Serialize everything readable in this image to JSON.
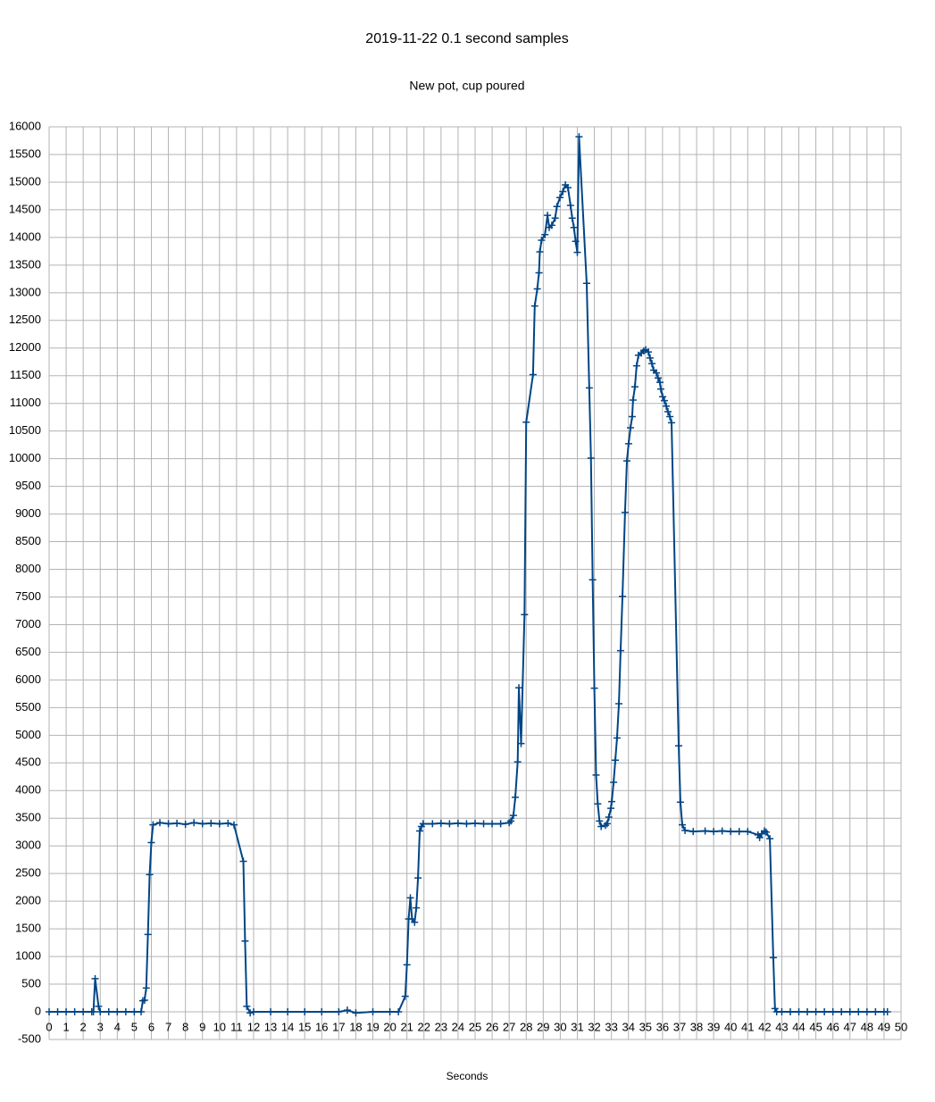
{
  "chart_data": {
    "type": "line",
    "title": "2019-11-22 0.1 second samples",
    "subtitle": "New pot, cup poured",
    "x_label": "Seconds",
    "color": "#004586",
    "grid": true,
    "x": [
      0,
      0.5,
      1,
      1.5,
      2,
      2.5,
      2.6,
      2.7,
      2.9,
      3.0,
      3.5,
      4,
      4.5,
      5,
      5.4,
      5.5,
      5.6,
      5.7,
      5.8,
      5.9,
      6.0,
      6.1,
      6.5,
      7,
      7.5,
      8,
      8.5,
      9,
      9.5,
      10,
      10.5,
      10.85,
      11.4,
      11.5,
      11.6,
      11.8,
      12,
      13,
      14,
      15,
      16,
      17,
      17.5,
      18,
      19,
      20,
      20.5,
      20.9,
      21.0,
      21.1,
      21.2,
      21.3,
      21.45,
      21.55,
      21.65,
      21.75,
      21.85,
      21.95,
      22.5,
      23,
      23.5,
      24,
      24.5,
      25,
      25.5,
      26,
      26.5,
      27.0,
      27.1,
      27.25,
      27.36,
      27.5,
      27.57,
      27.7,
      27.9,
      28.0,
      28.4,
      28.5,
      28.65,
      28.75,
      28.8,
      28.9,
      29.1,
      29.25,
      29.35,
      29.5,
      29.7,
      29.8,
      29.98,
      30.15,
      30.3,
      30.45,
      30.6,
      30.7,
      30.8,
      30.9,
      31.0,
      31.1,
      31.55,
      31.7,
      31.8,
      31.9,
      32.0,
      32.1,
      32.2,
      32.3,
      32.4,
      32.65,
      32.75,
      32.85,
      32.97,
      33.02,
      33.13,
      33.23,
      33.33,
      33.44,
      33.54,
      33.65,
      33.8,
      33.91,
      34.01,
      34.12,
      34.22,
      34.27,
      34.38,
      34.48,
      34.59,
      34.75,
      34.9,
      35.01,
      35.17,
      35.27,
      35.38,
      35.48,
      35.64,
      35.74,
      35.85,
      35.9,
      36.01,
      36.11,
      36.22,
      36.32,
      36.43,
      36.53,
      36.95,
      37.05,
      37.16,
      37.32,
      37.8,
      38.5,
      39,
      39.5,
      40,
      40.5,
      41,
      41.6,
      41.7,
      41.82,
      41.98,
      42.08,
      42.3,
      42.5,
      42.6,
      42.7,
      43,
      43.5,
      44,
      44.5,
      45,
      45.5,
      46,
      46.5,
      47,
      47.5,
      48,
      48.5,
      49,
      49.2
    ],
    "values": [
      0,
      0,
      0,
      0,
      0,
      0,
      0,
      600,
      100,
      0,
      0,
      0,
      0,
      0,
      0,
      200,
      210,
      430,
      1400,
      2480,
      3060,
      3380,
      3420,
      3400,
      3410,
      3390,
      3420,
      3400,
      3410,
      3400,
      3410,
      3380,
      2720,
      1280,
      100,
      -20,
      0,
      0,
      0,
      0,
      0,
      0,
      30,
      -20,
      0,
      0,
      0,
      280,
      850,
      1680,
      2060,
      1680,
      1620,
      1880,
      2420,
      3270,
      3350,
      3400,
      3400,
      3410,
      3400,
      3410,
      3400,
      3410,
      3400,
      3400,
      3400,
      3420,
      3450,
      3550,
      3880,
      4520,
      5860,
      4850,
      7180,
      10660,
      11520,
      12760,
      13070,
      13360,
      13740,
      13950,
      14050,
      14400,
      14180,
      14220,
      14350,
      14560,
      14720,
      14830,
      14950,
      14900,
      14580,
      14350,
      14180,
      13930,
      13730,
      15820,
      13170,
      11280,
      10010,
      7810,
      5850,
      4280,
      3760,
      3450,
      3350,
      3370,
      3400,
      3520,
      3680,
      3800,
      4150,
      4550,
      4950,
      5570,
      6530,
      7510,
      9030,
      9960,
      10270,
      10560,
      10760,
      11060,
      11300,
      11680,
      11870,
      11910,
      11950,
      11970,
      11930,
      11820,
      11720,
      11600,
      11550,
      11460,
      11380,
      11260,
      11120,
      11050,
      10950,
      10850,
      10760,
      10650,
      4810,
      3790,
      3380,
      3280,
      3260,
      3270,
      3260,
      3270,
      3260,
      3260,
      3260,
      3200,
      3150,
      3220,
      3270,
      3250,
      3130,
      980,
      60,
      0,
      0,
      0,
      0,
      0,
      0,
      0,
      0,
      0,
      0,
      0,
      0,
      0,
      0,
      0
    ],
    "xlim": [
      0,
      50
    ],
    "xticks": [
      0,
      1,
      2,
      3,
      4,
      5,
      6,
      7,
      8,
      9,
      10,
      11,
      12,
      13,
      14,
      15,
      16,
      17,
      18,
      19,
      20,
      21,
      22,
      23,
      24,
      25,
      26,
      27,
      28,
      29,
      30,
      31,
      32,
      33,
      34,
      35,
      36,
      37,
      38,
      39,
      40,
      41,
      42,
      43,
      44,
      45,
      46,
      47,
      48,
      49,
      50
    ],
    "ylim": [
      -500,
      16000
    ],
    "yticks": [
      -500,
      0,
      500,
      1000,
      1500,
      2000,
      2500,
      3000,
      3500,
      4000,
      4500,
      5000,
      5500,
      6000,
      6500,
      7000,
      7500,
      8000,
      8500,
      9000,
      9500,
      10000,
      10500,
      11000,
      11500,
      12000,
      12500,
      13000,
      13500,
      14000,
      14500,
      15000,
      15500,
      16000
    ]
  }
}
